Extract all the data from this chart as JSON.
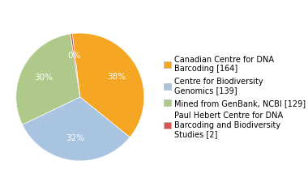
{
  "labels": [
    "Canadian Centre for DNA\nBarcoding [164]",
    "Centre for Biodiversity\nGenomics [139]",
    "Mined from GenBank, NCBI [129]",
    "Paul Hebert Centre for DNA\nBarcoding and Biodiversity\nStudies [2]"
  ],
  "values": [
    164,
    139,
    129,
    2
  ],
  "colors": [
    "#f5a623",
    "#a8c4e0",
    "#aec98a",
    "#d9534f"
  ],
  "background_color": "#ffffff",
  "font_size": 7.5,
  "legend_font_size": 7.0,
  "startangle": 97,
  "pct_color": "white"
}
